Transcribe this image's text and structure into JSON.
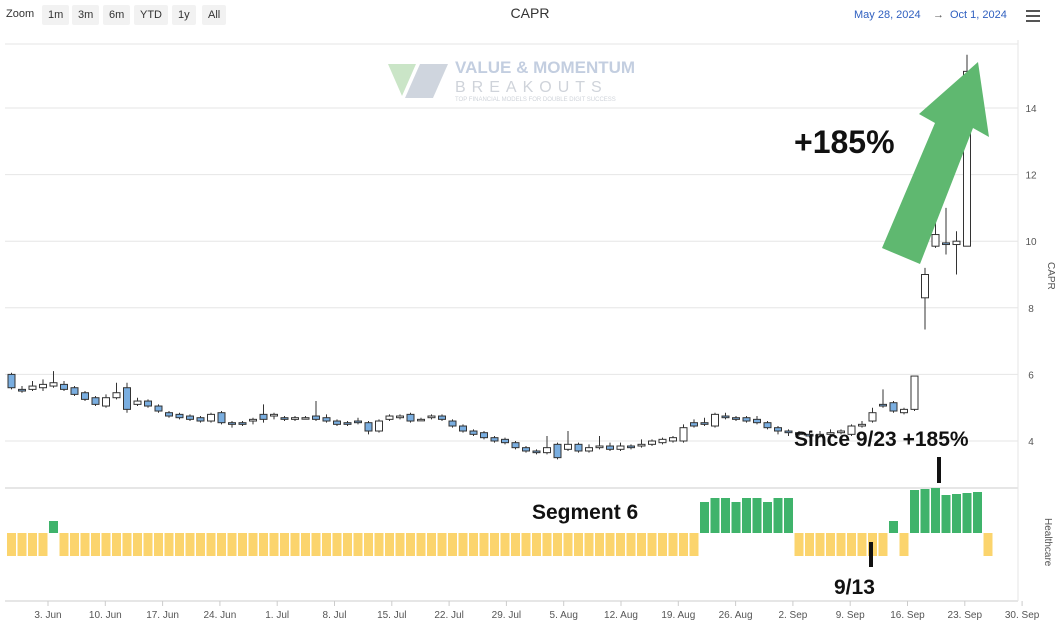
{
  "toolbar": {
    "zoom_label": "Zoom",
    "buttons": [
      "1m",
      "3m",
      "6m",
      "YTD",
      "1y",
      "All"
    ]
  },
  "title": "CAPR",
  "range": {
    "from": "May 28, 2024",
    "arrow": "→",
    "to": "Oct 1, 2024"
  },
  "watermark": {
    "line1": "VALUE & MOMENTUM",
    "line2": "BREAKOUTS",
    "line3": "TOP FINANCIAL MODELS FOR DOUBLE DIGIT SUCCESS"
  },
  "annotations": {
    "big_gain": "+185%",
    "since": "Since 9/23 +185%",
    "segment": "Segment 6",
    "date_mark": "9/13"
  },
  "colors": {
    "down_candle": "#7aaee0",
    "up_candle": "#ffffff",
    "segment_yellow": "#fbd46d",
    "segment_green": "#3fb36b",
    "arrow": "#5fb870",
    "date_text": "#3060c0"
  },
  "chart_data": {
    "type": "candlestick",
    "title": "CAPR",
    "ylabel": "CAPR",
    "y_ticks": [
      4,
      6,
      8,
      10,
      12,
      14
    ],
    "ylim": [
      2.6,
      16.5
    ],
    "x_tick_labels": [
      "3. Jun",
      "10. Jun",
      "17. Jun",
      "24. Jun",
      "1. Jul",
      "8. Jul",
      "15. Jul",
      "22. Jul",
      "29. Jul",
      "5. Aug",
      "12. Aug",
      "19. Aug",
      "26. Aug",
      "2. Sep",
      "9. Sep",
      "16. Sep",
      "23. Sep",
      "30. Sep"
    ],
    "grid": true,
    "candles": [
      {
        "o": 6.0,
        "h": 6.05,
        "l": 5.55,
        "c": 5.6
      },
      {
        "o": 5.55,
        "h": 5.65,
        "l": 5.45,
        "c": 5.5
      },
      {
        "o": 5.55,
        "h": 5.8,
        "l": 5.5,
        "c": 5.65
      },
      {
        "o": 5.6,
        "h": 5.85,
        "l": 5.5,
        "c": 5.7
      },
      {
        "o": 5.65,
        "h": 6.1,
        "l": 5.6,
        "c": 5.75
      },
      {
        "o": 5.7,
        "h": 5.8,
        "l": 5.5,
        "c": 5.55
      },
      {
        "o": 5.6,
        "h": 5.65,
        "l": 5.35,
        "c": 5.4
      },
      {
        "o": 5.45,
        "h": 5.5,
        "l": 5.2,
        "c": 5.25
      },
      {
        "o": 5.3,
        "h": 5.35,
        "l": 5.05,
        "c": 5.1
      },
      {
        "o": 5.05,
        "h": 5.4,
        "l": 5.0,
        "c": 5.3
      },
      {
        "o": 5.3,
        "h": 5.75,
        "l": 5.25,
        "c": 5.45
      },
      {
        "o": 5.6,
        "h": 5.75,
        "l": 4.85,
        "c": 4.95
      },
      {
        "o": 5.1,
        "h": 5.3,
        "l": 5.05,
        "c": 5.2
      },
      {
        "o": 5.2,
        "h": 5.25,
        "l": 5.0,
        "c": 5.05
      },
      {
        "o": 5.05,
        "h": 5.1,
        "l": 4.85,
        "c": 4.9
      },
      {
        "o": 4.85,
        "h": 4.9,
        "l": 4.7,
        "c": 4.75
      },
      {
        "o": 4.8,
        "h": 4.85,
        "l": 4.65,
        "c": 4.7
      },
      {
        "o": 4.75,
        "h": 4.8,
        "l": 4.6,
        "c": 4.65
      },
      {
        "o": 4.7,
        "h": 4.75,
        "l": 4.55,
        "c": 4.6
      },
      {
        "o": 4.6,
        "h": 4.85,
        "l": 4.55,
        "c": 4.8
      },
      {
        "o": 4.85,
        "h": 4.9,
        "l": 4.5,
        "c": 4.55
      },
      {
        "o": 4.55,
        "h": 4.6,
        "l": 4.4,
        "c": 4.5
      },
      {
        "o": 4.55,
        "h": 4.6,
        "l": 4.45,
        "c": 4.5
      },
      {
        "o": 4.6,
        "h": 4.7,
        "l": 4.5,
        "c": 4.65
      },
      {
        "o": 4.8,
        "h": 5.1,
        "l": 4.55,
        "c": 4.65
      },
      {
        "o": 4.75,
        "h": 4.85,
        "l": 4.65,
        "c": 4.8
      },
      {
        "o": 4.7,
        "h": 4.75,
        "l": 4.6,
        "c": 4.65
      },
      {
        "o": 4.65,
        "h": 4.75,
        "l": 4.6,
        "c": 4.7
      },
      {
        "o": 4.7,
        "h": 4.75,
        "l": 4.65,
        "c": 4.7
      },
      {
        "o": 4.75,
        "h": 5.2,
        "l": 4.6,
        "c": 4.65
      },
      {
        "o": 4.7,
        "h": 4.8,
        "l": 4.55,
        "c": 4.6
      },
      {
        "o": 4.6,
        "h": 4.65,
        "l": 4.45,
        "c": 4.5
      },
      {
        "o": 4.55,
        "h": 4.6,
        "l": 4.45,
        "c": 4.5
      },
      {
        "o": 4.6,
        "h": 4.7,
        "l": 4.5,
        "c": 4.55
      },
      {
        "o": 4.55,
        "h": 4.6,
        "l": 4.2,
        "c": 4.3
      },
      {
        "o": 4.3,
        "h": 4.65,
        "l": 4.25,
        "c": 4.6
      },
      {
        "o": 4.65,
        "h": 4.8,
        "l": 4.6,
        "c": 4.75
      },
      {
        "o": 4.7,
        "h": 4.8,
        "l": 4.65,
        "c": 4.75
      },
      {
        "o": 4.8,
        "h": 4.85,
        "l": 4.55,
        "c": 4.6
      },
      {
        "o": 4.65,
        "h": 4.7,
        "l": 4.6,
        "c": 4.65
      },
      {
        "o": 4.7,
        "h": 4.8,
        "l": 4.65,
        "c": 4.75
      },
      {
        "o": 4.75,
        "h": 4.8,
        "l": 4.6,
        "c": 4.65
      },
      {
        "o": 4.6,
        "h": 4.65,
        "l": 4.4,
        "c": 4.45
      },
      {
        "o": 4.45,
        "h": 4.5,
        "l": 4.25,
        "c": 4.3
      },
      {
        "o": 4.3,
        "h": 4.35,
        "l": 4.15,
        "c": 4.2
      },
      {
        "o": 4.25,
        "h": 4.3,
        "l": 4.05,
        "c": 4.1
      },
      {
        "o": 4.1,
        "h": 4.15,
        "l": 3.95,
        "c": 4.0
      },
      {
        "o": 4.05,
        "h": 4.1,
        "l": 3.9,
        "c": 3.95
      },
      {
        "o": 3.95,
        "h": 4.0,
        "l": 3.75,
        "c": 3.8
      },
      {
        "o": 3.8,
        "h": 3.85,
        "l": 3.65,
        "c": 3.7
      },
      {
        "o": 3.7,
        "h": 3.75,
        "l": 3.6,
        "c": 3.65
      },
      {
        "o": 3.65,
        "h": 4.15,
        "l": 3.6,
        "c": 3.8
      },
      {
        "o": 3.9,
        "h": 3.95,
        "l": 3.45,
        "c": 3.5
      },
      {
        "o": 3.75,
        "h": 4.3,
        "l": 3.7,
        "c": 3.9
      },
      {
        "o": 3.9,
        "h": 3.95,
        "l": 3.65,
        "c": 3.7
      },
      {
        "o": 3.7,
        "h": 3.9,
        "l": 3.65,
        "c": 3.8
      },
      {
        "o": 3.8,
        "h": 4.15,
        "l": 3.75,
        "c": 3.85
      },
      {
        "o": 3.85,
        "h": 3.95,
        "l": 3.7,
        "c": 3.75
      },
      {
        "o": 3.75,
        "h": 3.95,
        "l": 3.7,
        "c": 3.85
      },
      {
        "o": 3.85,
        "h": 3.9,
        "l": 3.75,
        "c": 3.8
      },
      {
        "o": 3.85,
        "h": 4.05,
        "l": 3.8,
        "c": 3.9
      },
      {
        "o": 3.9,
        "h": 4.05,
        "l": 3.85,
        "c": 4.0
      },
      {
        "o": 3.95,
        "h": 4.1,
        "l": 3.9,
        "c": 4.05
      },
      {
        "o": 4.0,
        "h": 4.15,
        "l": 3.95,
        "c": 4.1
      },
      {
        "o": 4.0,
        "h": 4.5,
        "l": 3.95,
        "c": 4.4
      },
      {
        "o": 4.55,
        "h": 4.65,
        "l": 4.4,
        "c": 4.45
      },
      {
        "o": 4.55,
        "h": 4.7,
        "l": 4.45,
        "c": 4.5
      },
      {
        "o": 4.45,
        "h": 4.85,
        "l": 4.4,
        "c": 4.8
      },
      {
        "o": 4.75,
        "h": 4.85,
        "l": 4.65,
        "c": 4.7
      },
      {
        "o": 4.7,
        "h": 4.75,
        "l": 4.6,
        "c": 4.65
      },
      {
        "o": 4.7,
        "h": 4.75,
        "l": 4.55,
        "c": 4.6
      },
      {
        "o": 4.65,
        "h": 4.75,
        "l": 4.5,
        "c": 4.55
      },
      {
        "o": 4.55,
        "h": 4.6,
        "l": 4.35,
        "c": 4.4
      },
      {
        "o": 4.4,
        "h": 4.45,
        "l": 4.2,
        "c": 4.3
      },
      {
        "o": 4.3,
        "h": 4.35,
        "l": 4.15,
        "c": 4.25
      },
      {
        "o": 4.25,
        "h": 4.3,
        "l": 4.15,
        "c": 4.2
      },
      {
        "o": 4.2,
        "h": 4.3,
        "l": 4.1,
        "c": 4.15
      },
      {
        "o": 4.15,
        "h": 4.3,
        "l": 4.1,
        "c": 4.2
      },
      {
        "o": 4.2,
        "h": 4.35,
        "l": 4.15,
        "c": 4.25
      },
      {
        "o": 4.25,
        "h": 4.35,
        "l": 4.2,
        "c": 4.3
      },
      {
        "o": 4.2,
        "h": 4.5,
        "l": 4.15,
        "c": 4.45
      },
      {
        "o": 4.45,
        "h": 4.6,
        "l": 4.4,
        "c": 4.5
      },
      {
        "o": 4.6,
        "h": 5.0,
        "l": 4.55,
        "c": 4.85
      },
      {
        "o": 5.1,
        "h": 5.55,
        "l": 5.0,
        "c": 5.05
      },
      {
        "o": 5.15,
        "h": 5.2,
        "l": 4.85,
        "c": 4.9
      },
      {
        "o": 4.85,
        "h": 5.0,
        "l": 4.8,
        "c": 4.95
      },
      {
        "o": 4.95,
        "h": 5.95,
        "l": 4.9,
        "c": 5.95
      },
      {
        "o": 8.3,
        "h": 9.2,
        "l": 7.35,
        "c": 9.0
      },
      {
        "o": 9.85,
        "h": 12.8,
        "l": 9.8,
        "c": 10.2
      },
      {
        "o": 9.95,
        "h": 11.0,
        "l": 9.6,
        "c": 9.9
      },
      {
        "o": 9.9,
        "h": 10.3,
        "l": 9.0,
        "c": 10.0
      },
      {
        "o": 9.85,
        "h": 15.6,
        "l": 9.85,
        "c": 15.1
      }
    ],
    "segment_panel": {
      "ylabel": "Healthcare",
      "legend_colors": [
        "yellow",
        "green"
      ],
      "levels": [
        1,
        1,
        1,
        1,
        0,
        1,
        1,
        1,
        1,
        1,
        1,
        1,
        1,
        1,
        1,
        1,
        1,
        1,
        1,
        1,
        1,
        1,
        1,
        1,
        1,
        1,
        1,
        1,
        1,
        1,
        1,
        1,
        1,
        1,
        1,
        1,
        1,
        1,
        1,
        1,
        1,
        1,
        1,
        1,
        1,
        1,
        1,
        1,
        1,
        1,
        1,
        1,
        1,
        1,
        1,
        1,
        1,
        1,
        1,
        1,
        1,
        1,
        1,
        1,
        1,
        1,
        3,
        3,
        3,
        3,
        3,
        3,
        3,
        3,
        3,
        1,
        1,
        1,
        1,
        1,
        1,
        1,
        1,
        1,
        1,
        1,
        1,
        1,
        1,
        1,
        1,
        1,
        1,
        1
      ],
      "green": [
        0,
        0,
        0,
        0,
        1,
        0,
        0,
        0,
        0,
        0,
        0,
        0,
        0,
        0,
        0,
        0,
        0,
        0,
        0,
        0,
        0,
        0,
        0,
        0,
        0,
        0,
        0,
        0,
        0,
        0,
        0,
        0,
        0,
        0,
        0,
        0,
        0,
        0,
        0,
        0,
        0,
        0,
        0,
        0,
        0,
        0,
        0,
        0,
        0,
        0,
        0,
        0,
        0,
        0,
        0,
        0,
        0,
        0,
        0,
        0,
        0,
        0,
        0,
        0,
        0,
        0,
        1,
        1,
        1,
        1,
        1,
        1,
        1,
        1,
        1,
        0,
        0,
        0,
        0,
        0,
        0,
        0,
        0,
        0,
        1,
        0,
        1,
        1,
        1,
        1,
        1,
        1,
        1,
        0
      ]
    }
  }
}
